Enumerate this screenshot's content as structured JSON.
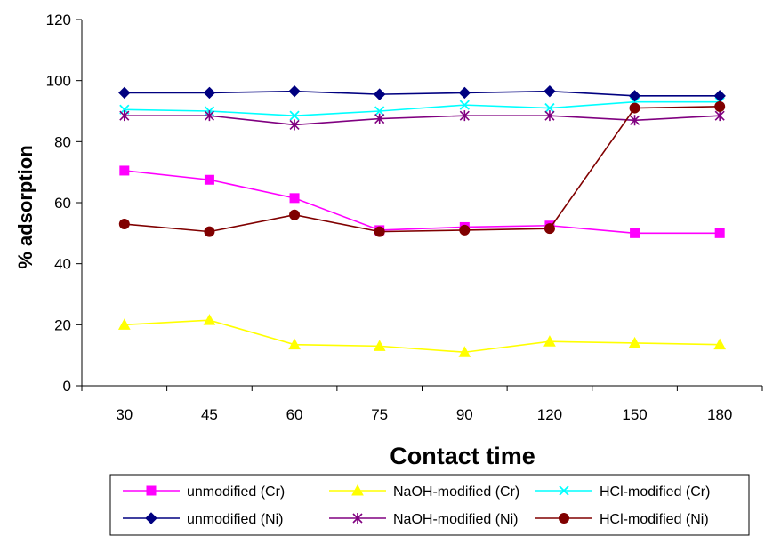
{
  "chart_data": {
    "type": "line",
    "categories": [
      "30",
      "45",
      "60",
      "75",
      "90",
      "120",
      "150",
      "180"
    ],
    "xlabel": "Contact time",
    "ylabel": "% adsorption",
    "ylim": [
      0,
      120
    ],
    "yticks": [
      "0",
      "20",
      "40",
      "60",
      "80",
      "100",
      "120"
    ],
    "grid": false,
    "legend_position": "bottom",
    "series": [
      {
        "name": "unmodified (Cr)",
        "color": "#ff00ff",
        "marker": "square",
        "values": [
          70.5,
          67.5,
          61.5,
          51,
          52,
          52.5,
          50,
          50
        ]
      },
      {
        "name": "NaOH-modified (Cr)",
        "color": "#ffff00",
        "marker": "triangle",
        "values": [
          20,
          21.5,
          13.5,
          13,
          11,
          14.5,
          14,
          13.5
        ]
      },
      {
        "name": "HCl-modified (Cr)",
        "color": "#00ffff",
        "marker": "x",
        "values": [
          90.5,
          90,
          88.5,
          90,
          92,
          91,
          93,
          93
        ]
      },
      {
        "name": "unmodified (Ni)",
        "color": "#000080",
        "marker": "diamond",
        "values": [
          96,
          96,
          96.5,
          95.5,
          96,
          96.5,
          95,
          95
        ]
      },
      {
        "name": "NaOH-modified (Ni)",
        "color": "#800080",
        "marker": "star",
        "values": [
          88.5,
          88.5,
          85.5,
          87.5,
          88.5,
          88.5,
          87,
          88.5
        ]
      },
      {
        "name": "HCl-modified (Ni)",
        "color": "#800000",
        "marker": "circle",
        "values": [
          53,
          50.5,
          56,
          50.5,
          51,
          51.5,
          91,
          91.5
        ]
      }
    ]
  }
}
